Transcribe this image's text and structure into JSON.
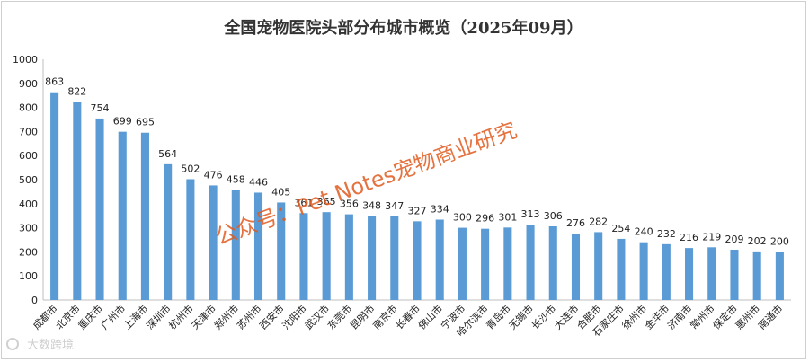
{
  "chart_data": {
    "type": "bar",
    "title": "全国宠物医院头部分布城市概览（2025年09月）",
    "xlabel": "",
    "ylabel": "",
    "ylim": [
      0,
      1000
    ],
    "yticks": [
      0,
      100,
      200,
      300,
      400,
      500,
      600,
      700,
      800,
      900,
      1000
    ],
    "grid": false,
    "bar_color": "#5b9bd5",
    "categories": [
      "成都市",
      "北京市",
      "重庆市",
      "广州市",
      "上海市",
      "深圳市",
      "杭州市",
      "天津市",
      "郑州市",
      "苏州市",
      "西安市",
      "沈阳市",
      "武汉市",
      "东莞市",
      "昆明市",
      "南京市",
      "长春市",
      "佛山市",
      "宁波市",
      "哈尔滨市",
      "青岛市",
      "无锡市",
      "长沙市",
      "大连市",
      "合肥市",
      "石家庄市",
      "徐州市",
      "金华市",
      "济南市",
      "常州市",
      "保定市",
      "惠州市",
      "南通市"
    ],
    "values": [
      863,
      822,
      754,
      699,
      695,
      564,
      502,
      476,
      458,
      446,
      405,
      361,
      365,
      356,
      348,
      347,
      327,
      334,
      300,
      296,
      301,
      313,
      306,
      276,
      282,
      254,
      240,
      232,
      216,
      219,
      209,
      202,
      200
    ],
    "value_labels": [
      "863",
      "822",
      "754",
      "699",
      "695",
      "564",
      "502",
      "476",
      "458",
      "446",
      "405",
      "361",
      "365",
      "356",
      "348",
      "347",
      "327",
      "334",
      "300",
      "296",
      "301",
      "313",
      "306",
      "276",
      "282",
      "254",
      "240",
      "232",
      "216",
      "219",
      "209",
      "202",
      "200"
    ]
  },
  "watermark": {
    "text": "公众号：Pet Notes宠物商业研究",
    "color": "#e05a1e"
  },
  "footer": {
    "text": "大数跨境"
  }
}
